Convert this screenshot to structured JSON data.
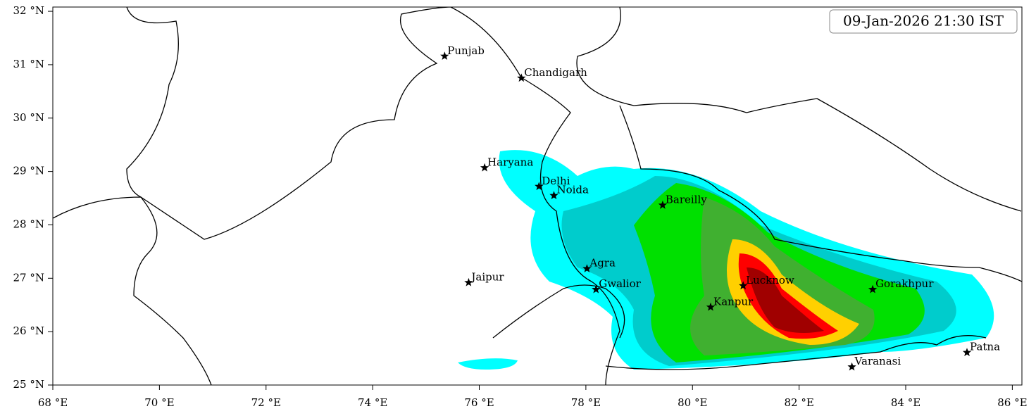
{
  "map": {
    "timestamp": "09-Jan-2026 21:30 IST",
    "xlim": [
      68,
      86.18
    ],
    "ylim": [
      25,
      32.08
    ],
    "xticks": [
      {
        "value": 68,
        "label": "68 °E"
      },
      {
        "value": 70,
        "label": "70 °E"
      },
      {
        "value": 72,
        "label": "72 °E"
      },
      {
        "value": 74,
        "label": "74 °E"
      },
      {
        "value": 76,
        "label": "76 °E"
      },
      {
        "value": 78,
        "label": "78 °E"
      },
      {
        "value": 80,
        "label": "80 °E"
      },
      {
        "value": 82,
        "label": "82 °E"
      },
      {
        "value": 84,
        "label": "84 °E"
      },
      {
        "value": 86,
        "label": "86 °E"
      }
    ],
    "yticks": [
      {
        "value": 25,
        "label": "25 °N"
      },
      {
        "value": 26,
        "label": "26 °N"
      },
      {
        "value": 27,
        "label": "27 °N"
      },
      {
        "value": 28,
        "label": "28 °N"
      },
      {
        "value": 29,
        "label": "29 °N"
      },
      {
        "value": 30,
        "label": "30 °N"
      },
      {
        "value": 31,
        "label": "31 °N"
      },
      {
        "value": 32,
        "label": "32 °N"
      }
    ],
    "places": [
      {
        "name": "Punjab",
        "lon": 75.35,
        "lat": 31.16
      },
      {
        "name": "Chandigarh",
        "lon": 76.79,
        "lat": 30.75
      },
      {
        "name": "Haryana",
        "lon": 76.1,
        "lat": 29.07
      },
      {
        "name": "Delhi",
        "lon": 77.12,
        "lat": 28.72
      },
      {
        "name": "Noida",
        "lon": 77.4,
        "lat": 28.55
      },
      {
        "name": "Bareilly",
        "lon": 79.44,
        "lat": 28.37
      },
      {
        "name": "Agra",
        "lon": 78.02,
        "lat": 27.18
      },
      {
        "name": "Jaipur",
        "lon": 75.8,
        "lat": 26.92
      },
      {
        "name": "Gwalior",
        "lon": 78.19,
        "lat": 26.79
      },
      {
        "name": "Lucknow",
        "lon": 80.95,
        "lat": 26.86
      },
      {
        "name": "Gorakhpur",
        "lon": 83.38,
        "lat": 26.79
      },
      {
        "name": "Kanpur",
        "lon": 80.34,
        "lat": 26.46
      },
      {
        "name": "Varanasi",
        "lon": 82.99,
        "lat": 25.34
      },
      {
        "name": "Patna",
        "lon": 85.15,
        "lat": 25.61
      }
    ]
  }
}
